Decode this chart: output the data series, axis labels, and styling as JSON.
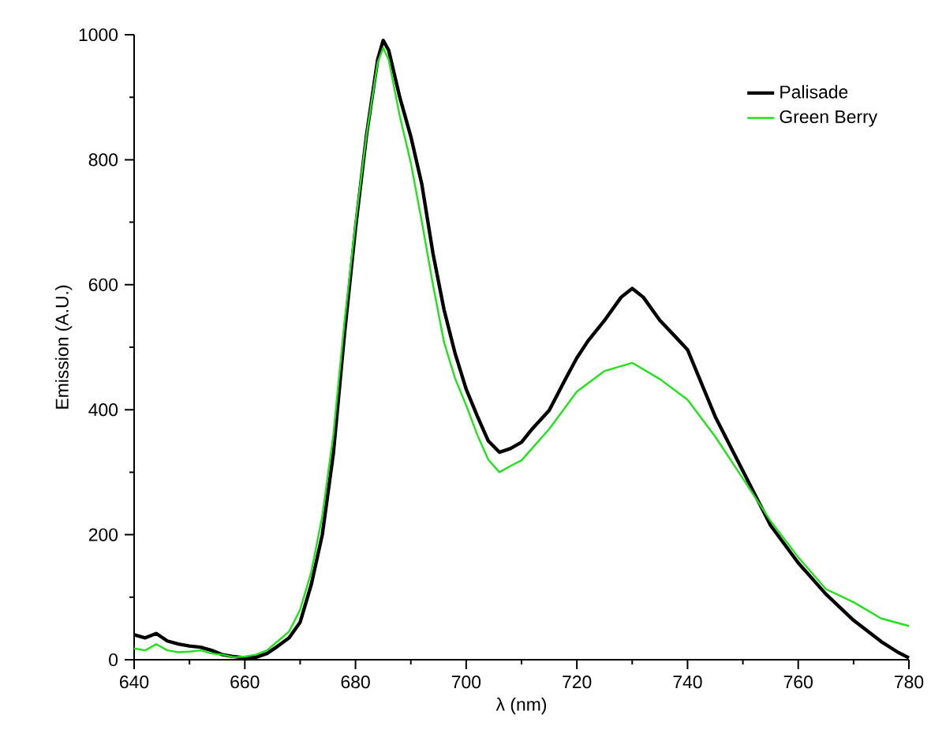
{
  "chart_data": {
    "type": "line",
    "xlabel": "λ (nm)",
    "ylabel": "Emission (A.U.)",
    "xlim": [
      640,
      780
    ],
    "xticks": [
      640,
      660,
      680,
      700,
      720,
      740,
      760,
      780
    ],
    "ylim": [
      0,
      1000
    ],
    "yticks": [
      0,
      200,
      400,
      600,
      800,
      1000
    ],
    "grid": false,
    "legend": "top right",
    "marker": "none",
    "line_style": "solid",
    "series": [
      {
        "name": "Palisade",
        "color": "#000000",
        "x": [
          640,
          642,
          644,
          646,
          648,
          650,
          652,
          654,
          656,
          658,
          660,
          662,
          664,
          666,
          668,
          670,
          672,
          674,
          676,
          678,
          680,
          682,
          684,
          685,
          686,
          688,
          690,
          692,
          694,
          696,
          698,
          700,
          702,
          704,
          706,
          708,
          710,
          712,
          715,
          718,
          720,
          722,
          725,
          728,
          730,
          732,
          735,
          738,
          740,
          745,
          750,
          755,
          760,
          765,
          770,
          775,
          778,
          780
        ],
        "values": [
          40,
          35,
          42,
          30,
          25,
          22,
          20,
          15,
          8,
          5,
          3,
          4,
          10,
          22,
          35,
          60,
          120,
          200,
          330,
          520,
          690,
          840,
          960,
          991,
          975,
          900,
          837,
          760,
          650,
          560,
          490,
          433,
          390,
          350,
          332,
          338,
          348,
          370,
          399,
          450,
          483,
          510,
          543,
          580,
          594,
          580,
          543,
          515,
          496,
          389,
          302,
          215,
          155,
          105,
          63,
          29,
          12,
          3
        ]
      },
      {
        "name": "Green Berry",
        "color": "#22e01c",
        "x": [
          640,
          642,
          644,
          646,
          648,
          650,
          652,
          654,
          656,
          658,
          660,
          662,
          664,
          666,
          668,
          670,
          672,
          674,
          676,
          678,
          680,
          682,
          684,
          685,
          686,
          688,
          690,
          692,
          694,
          696,
          698,
          700,
          702,
          704,
          706,
          708,
          710,
          715,
          720,
          725,
          730,
          735,
          740,
          745,
          750,
          755,
          760,
          765,
          770,
          775,
          780
        ],
        "values": [
          18,
          15,
          25,
          15,
          12,
          13,
          15,
          10,
          8,
          4,
          5,
          8,
          15,
          30,
          45,
          80,
          140,
          230,
          360,
          540,
          700,
          840,
          955,
          979,
          960,
          870,
          795,
          700,
          600,
          508,
          450,
          407,
          360,
          320,
          300,
          310,
          319,
          369,
          429,
          462,
          475,
          449,
          416,
          357,
          290,
          222,
          164,
          113,
          92,
          66,
          54
        ]
      }
    ]
  }
}
